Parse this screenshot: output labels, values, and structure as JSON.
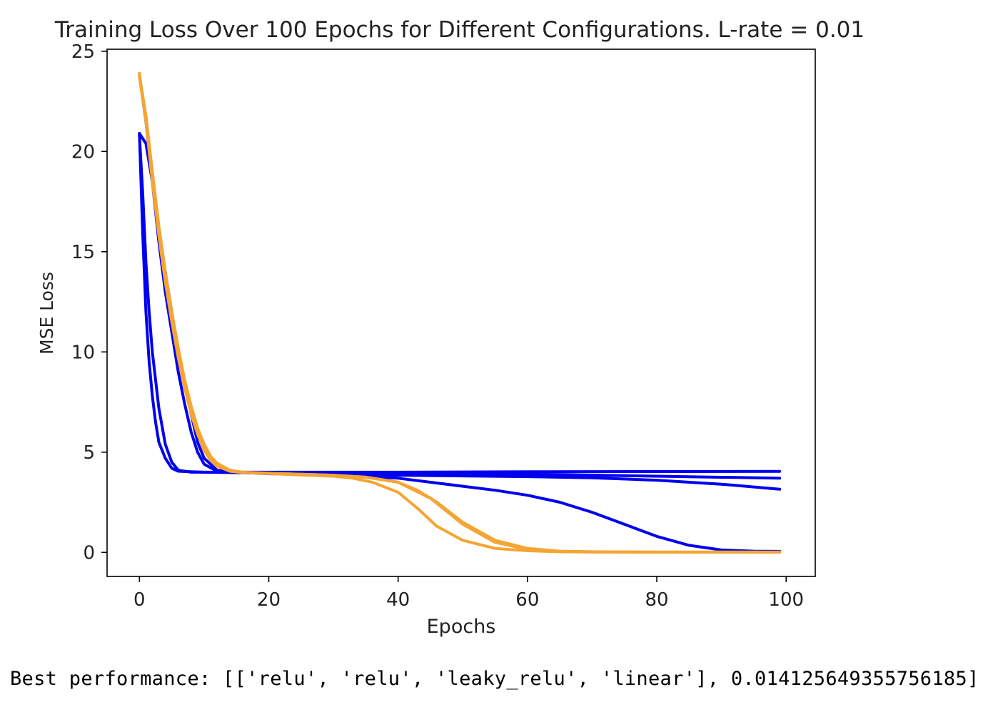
{
  "chart_data": {
    "type": "line",
    "title": "Training Loss Over 100 Epochs for Different Configurations. L-rate = 0.01",
    "xlabel": "Epochs",
    "ylabel": "MSE Loss",
    "xlim": [
      -5,
      104.5
    ],
    "ylim": [
      -1.2,
      25.1
    ],
    "xticks": [
      0,
      20,
      40,
      60,
      80,
      100
    ],
    "yticks": [
      0,
      5,
      10,
      15,
      20,
      25
    ],
    "grid": false,
    "colors": {
      "blue": "#0000ee",
      "orange": "#f4a533"
    },
    "series": [
      {
        "color": "blue",
        "x": [
          0,
          0.5,
          1,
          1.5,
          2,
          2.5,
          3,
          4,
          5,
          6,
          8,
          10,
          20,
          40,
          60,
          80,
          99
        ],
        "y": [
          20.9,
          16,
          12,
          9.5,
          7.8,
          6.5,
          5.5,
          4.7,
          4.2,
          4.05,
          4.02,
          4.0,
          4.0,
          4.0,
          4.02,
          4.03,
          4.04
        ]
      },
      {
        "color": "blue",
        "x": [
          0,
          0.5,
          1,
          1.5,
          2,
          3,
          4,
          5,
          6,
          8,
          10,
          20,
          40,
          60,
          80,
          99
        ],
        "y": [
          20.8,
          18,
          14.5,
          12,
          10,
          7.2,
          5.4,
          4.5,
          4.1,
          4.0,
          4.0,
          3.95,
          3.95,
          3.9,
          3.8,
          3.7
        ]
      },
      {
        "color": "blue",
        "x": [
          0,
          1,
          2,
          3,
          4,
          5,
          6,
          7,
          8,
          9,
          10,
          12,
          15,
          20,
          40,
          60,
          70,
          80,
          90,
          99
        ],
        "y": [
          20.9,
          20.4,
          18.5,
          16.2,
          14,
          12,
          10,
          8.4,
          6.9,
          5.5,
          4.7,
          4.1,
          4.0,
          3.92,
          3.85,
          3.78,
          3.72,
          3.6,
          3.4,
          3.15
        ]
      },
      {
        "color": "blue",
        "x": [
          0,
          1,
          2,
          3,
          4,
          5,
          6,
          7,
          8,
          9,
          10,
          12,
          15,
          20,
          30,
          40,
          50,
          55,
          60,
          65,
          70,
          75,
          80,
          85,
          90,
          95,
          99
        ],
        "y": [
          23.8,
          21.5,
          18.5,
          15.5,
          13,
          11,
          9,
          7.4,
          6,
          5,
          4.4,
          4.05,
          4.0,
          3.95,
          3.85,
          3.7,
          3.3,
          3.1,
          2.85,
          2.5,
          2.0,
          1.4,
          0.8,
          0.35,
          0.12,
          0.06,
          0.05
        ]
      },
      {
        "color": "orange",
        "x": [
          0,
          1,
          2,
          3,
          4,
          5,
          6,
          7,
          8,
          9,
          10,
          11,
          12,
          14,
          16,
          20,
          30,
          35,
          40,
          45,
          50,
          55,
          60,
          65,
          70,
          80,
          99
        ],
        "y": [
          23.9,
          21.5,
          18.5,
          15.8,
          13.5,
          11.5,
          9.7,
          8.2,
          6.9,
          5.9,
          5.1,
          4.6,
          4.3,
          4.05,
          3.98,
          3.95,
          3.85,
          3.75,
          3.5,
          2.7,
          1.4,
          0.5,
          0.15,
          0.05,
          0.02,
          0.01,
          0.01
        ]
      },
      {
        "color": "orange",
        "x": [
          0,
          1,
          2,
          3,
          4,
          5,
          6,
          7,
          8,
          9,
          10,
          11,
          12,
          14,
          16,
          20,
          30,
          35,
          40,
          43,
          46,
          50,
          55,
          60,
          65,
          70,
          80,
          99
        ],
        "y": [
          23.8,
          21.8,
          19,
          16.3,
          14,
          12,
          10.2,
          8.6,
          7.3,
          6.2,
          5.4,
          4.8,
          4.45,
          4.1,
          4.0,
          3.95,
          3.85,
          3.75,
          3.5,
          3.1,
          2.5,
          1.5,
          0.6,
          0.2,
          0.06,
          0.03,
          0.02,
          0.02
        ]
      },
      {
        "color": "orange",
        "x": [
          0,
          1,
          2,
          3,
          4,
          5,
          6,
          7,
          8,
          9,
          10,
          11,
          12,
          14,
          16,
          20,
          30,
          33,
          36,
          40,
          43,
          46,
          50,
          55,
          60,
          65,
          70,
          80,
          99
        ],
        "y": [
          23.7,
          21.6,
          18.8,
          16,
          13.7,
          11.7,
          9.9,
          8.4,
          7.1,
          6.0,
          5.2,
          4.7,
          4.35,
          4.05,
          3.98,
          3.93,
          3.8,
          3.7,
          3.5,
          3.0,
          2.2,
          1.3,
          0.6,
          0.2,
          0.08,
          0.03,
          0.02,
          0.01,
          0.01
        ]
      }
    ]
  },
  "output": {
    "text": "Best performance: [['relu', 'relu', 'leaky_relu', 'linear'], 0.014125649355756185]"
  }
}
